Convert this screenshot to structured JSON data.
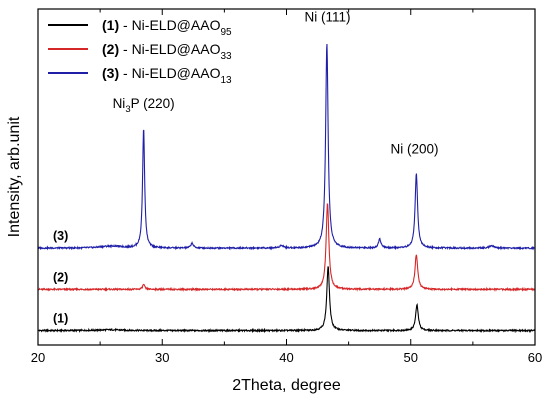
{
  "chart_data": {
    "type": "line",
    "xlabel": "2Theta, degree",
    "ylabel": "Intensity, arb.unit",
    "xlim": [
      20,
      60
    ],
    "x_ticks": [
      20,
      30,
      40,
      50,
      60
    ],
    "y_ticks_shown": false,
    "grid": false,
    "legend_position": "top-left",
    "series": [
      {
        "name": "(1) - Ni-ELD@AAO95",
        "legend_num": "(1)",
        "legend_text": " - Ni-ELD@AAO",
        "legend_sub": "95",
        "color": "#000000",
        "label": "(1)",
        "baseline": 0.0,
        "peaks": [
          {
            "x": 25.8,
            "h": 0.02,
            "w": 1.2
          },
          {
            "x": 43.35,
            "h": 1.55,
            "w": 0.13
          },
          {
            "x": 50.5,
            "h": 0.62,
            "w": 0.13
          }
        ]
      },
      {
        "name": "(2) - Ni-ELD@AAO33",
        "legend_num": "(2)",
        "legend_text": " - Ni-ELD@AAO",
        "legend_sub": "33",
        "color": "#d62728",
        "label": "(2)",
        "baseline": 1.0,
        "peaks": [
          {
            "x": 28.5,
            "h": 0.12,
            "w": 0.1
          },
          {
            "x": 43.3,
            "h": 2.1,
            "w": 0.13
          },
          {
            "x": 50.45,
            "h": 0.85,
            "w": 0.13
          }
        ]
      },
      {
        "name": "(3) - Ni-ELD@AAO13",
        "legend_num": "(3)",
        "legend_text": " - Ni-ELD@AAO",
        "legend_sub": "13",
        "color": "#1f1fa8",
        "label": "(3)",
        "baseline": 2.0,
        "peaks": [
          {
            "x": 25.9,
            "h": 0.05,
            "w": 1.0
          },
          {
            "x": 28.5,
            "h": 2.9,
            "w": 0.1
          },
          {
            "x": 32.4,
            "h": 0.12,
            "w": 0.12
          },
          {
            "x": 39.6,
            "h": 0.06,
            "w": 0.2
          },
          {
            "x": 43.25,
            "h": 4.95,
            "w": 0.12
          },
          {
            "x": 47.5,
            "h": 0.22,
            "w": 0.12
          },
          {
            "x": 50.45,
            "h": 1.8,
            "w": 0.12
          },
          {
            "x": 56.5,
            "h": 0.06,
            "w": 0.2
          }
        ]
      }
    ],
    "annotations": [
      {
        "main": "Ni",
        "sub": "3",
        "rest": "P (220)",
        "x": 28.5,
        "y_label": 5.4
      },
      {
        "main": "Ni (111)",
        "sub": "",
        "rest": "",
        "x": 43.3,
        "y_label": 7.5
      },
      {
        "main": "Ni (200)",
        "sub": "",
        "rest": "",
        "x": 50.3,
        "y_label": 4.3
      }
    ]
  }
}
